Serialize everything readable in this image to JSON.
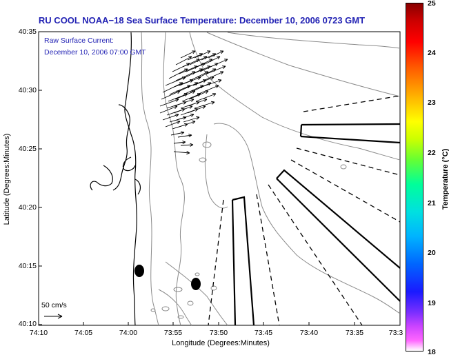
{
  "title": "RU COOL  NOAA−18  Sea Surface Temperature:  December 10, 2006 0723 GMT",
  "current_label": {
    "line1": "Raw Surface Current:",
    "line2": "December 10, 2006 07:00 GMT"
  },
  "axes": {
    "xlabel": "Longitude (Degrees:Minutes)",
    "ylabel": "Latitude (Degrees:Minutes)",
    "xticks": [
      "74:10",
      "74:05",
      "74:00",
      "73:55",
      "73:50",
      "73:45",
      "73:40",
      "73:35",
      "73:3"
    ],
    "yticks": [
      "40:35",
      "40:30",
      "40:25",
      "40:20",
      "40:15",
      "40:10"
    ]
  },
  "scale_arrow_label": "50 cm/s",
  "colorbar": {
    "title": "Temperature (°C)",
    "ticks": [
      "25",
      "24",
      "23",
      "22",
      "21",
      "20",
      "19",
      "18"
    ],
    "range": [
      18,
      25
    ]
  },
  "colors": {
    "title": "#2323b4",
    "contour": "#888888",
    "coast": "#000000"
  },
  "icons": [
    "current-vector-arrows",
    "bathymetry-contours",
    "coastline",
    "shipping-lanes",
    "buoy-markers",
    "colorbar"
  ]
}
